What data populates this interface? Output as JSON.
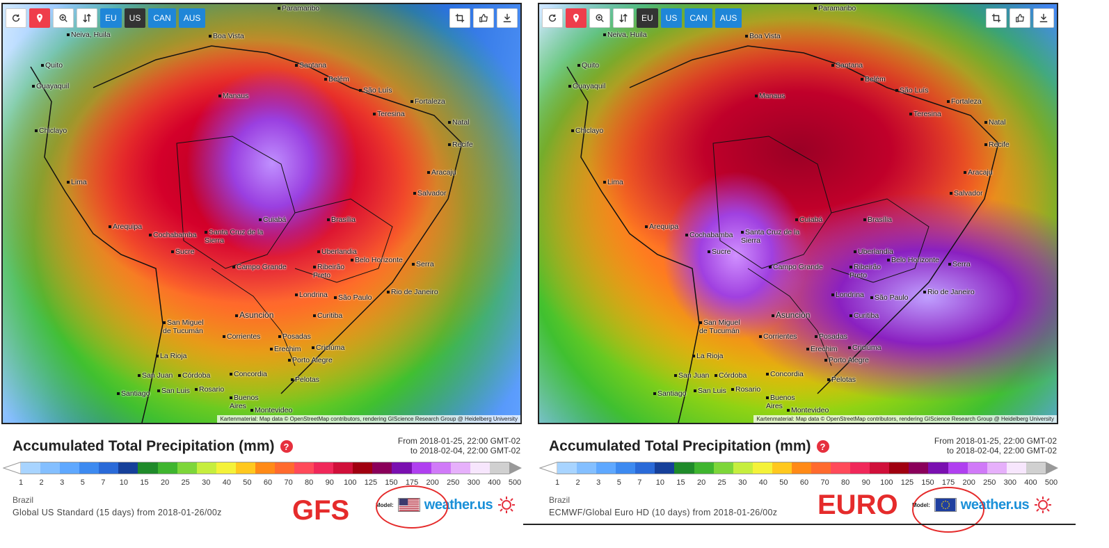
{
  "toolbar": {
    "region_buttons": [
      "EU",
      "US",
      "CAN",
      "AUS"
    ]
  },
  "map": {
    "cities": [
      "Paramaribo",
      "Neiva, Huila",
      "Boa Vista",
      "Quito",
      "Guayaquil",
      "Santana",
      "Belém",
      "Manaus",
      "São Luís",
      "Fortaleza",
      "Teresina",
      "Natal",
      "Chiclayo",
      "Recife",
      "Aracaju",
      "Lima",
      "Salvador",
      "Arequipa",
      "Cochabamba",
      "Santa Cruz de la Sierra",
      "Cuiabá",
      "Brasília",
      "Sucre",
      "Uberlandia",
      "Belo Horizonte",
      "Campo Grande",
      "Ribeirão Preto",
      "Serra",
      "Londrina",
      "São Paulo",
      "Rio de Janeiro",
      "Asunción",
      "Curitiba",
      "San Miguel de Tucumán",
      "Corrientes",
      "Posadas",
      "Erechim",
      "Criciúma",
      "La Rioja",
      "Porto Alegre",
      "San Juan",
      "Córdoba",
      "Concordia",
      "Pelotas",
      "Rosario",
      "San Luis",
      "Santiago",
      "Buenos Aires",
      "Montevideo"
    ],
    "attribution": "Kartenmaterial: Map data © OpenStreetMap contributors, rendering GIScience Research Group @ Heidelberg University"
  },
  "left": {
    "title": "Accumulated Total Precipitation (mm)",
    "period_from": "From 2018-01-25, 22:00 GMT-02",
    "period_to": "to 2018-02-04, 22:00 GMT-02",
    "region": "Brazil",
    "model": "Global US Standard (15 days) from 2018-01-26/00z",
    "tag": "GFS",
    "model_label": "Model:",
    "brand": "weather.us"
  },
  "right": {
    "title": "Accumulated Total Precipitation (mm)",
    "period_from": "From 2018-01-25, 22:00 GMT-02",
    "period_to": "to 2018-02-04, 22:00 GMT-02",
    "region": "Brazil",
    "model": "ECMWF/Global Euro HD (10 days) from 2018-01-26/00z",
    "tag": "EURO",
    "model_label": "Model:",
    "brand": "weather.us"
  },
  "scale": {
    "labels": [
      "1",
      "2",
      "3",
      "5",
      "7",
      "10",
      "15",
      "20",
      "25",
      "30",
      "40",
      "50",
      "60",
      "70",
      "80",
      "90",
      "100",
      "125",
      "150",
      "175",
      "200",
      "250",
      "300",
      "400",
      "500"
    ],
    "colors": [
      "#a8d4ff",
      "#84bfff",
      "#5fa8ff",
      "#3d8af0",
      "#2a6ad8",
      "#16409a",
      "#1f8a2a",
      "#3fb52f",
      "#7dd63a",
      "#c6ee3e",
      "#f4f23a",
      "#ffc81f",
      "#ff8a17",
      "#ff6a2e",
      "#ff4a5a",
      "#f0285a",
      "#d0103a",
      "#a00010",
      "#8a005a",
      "#7a10b0",
      "#b040f0",
      "#d07af8",
      "#e6b0fb",
      "#f7e6fd",
      "#d0d0d0"
    ]
  }
}
